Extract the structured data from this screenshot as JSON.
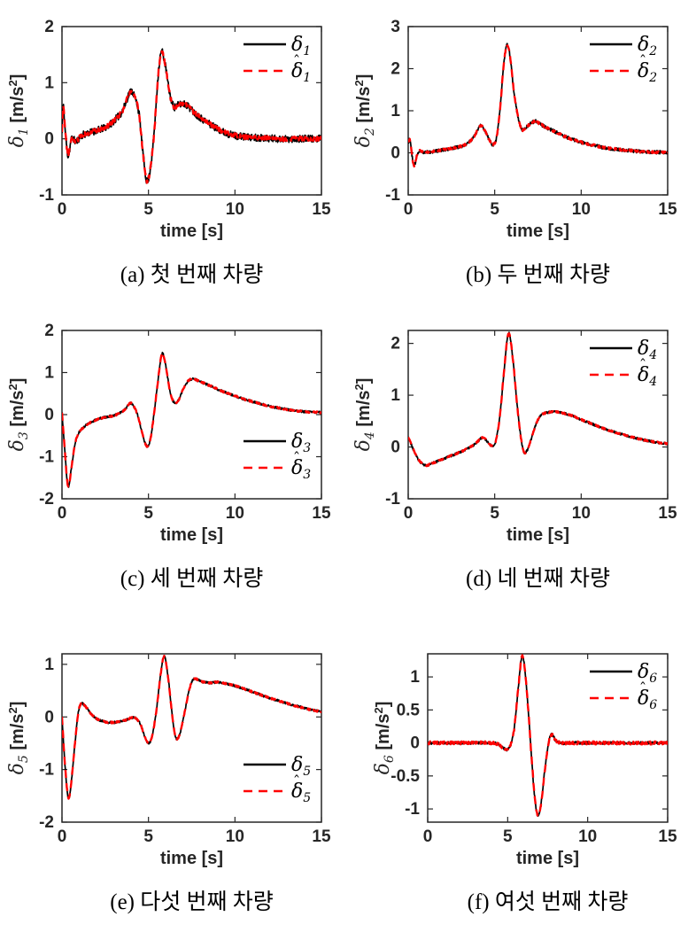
{
  "style": {
    "background": "#ffffff",
    "axis_color": "#262626",
    "measured_color": "#000000",
    "estimate_color": "#ff0000"
  },
  "chart_data": [
    {
      "id": "a",
      "type": "line",
      "caption": "(a) 첫 번째 차량",
      "xlabel": "time [s]",
      "ylabel": {
        "sym": "δ",
        "sub": "1",
        "unit_pre": " [m/s",
        "unit_sup": "2",
        "unit_post": "]"
      },
      "xlim": [
        0,
        15
      ],
      "ylim": [
        -1,
        2
      ],
      "xticks": [
        0,
        5,
        10,
        15
      ],
      "yticks": [
        -1,
        0,
        1,
        2
      ],
      "legend_pos": "top-right",
      "series": [
        {
          "name": "δ1",
          "role": "measured",
          "sym": "δ",
          "sub": "1",
          "hat": false,
          "color": "#000000",
          "style": "solid",
          "width": 1.7,
          "noise": 0.065,
          "seed": 11
        },
        {
          "name": "δ̂1",
          "role": "estimate",
          "sym": "δ",
          "sub": "1",
          "hat": true,
          "color": "#ff0000",
          "style": "dashed",
          "width": 2.4,
          "noise": 0.04,
          "seed": 57
        }
      ],
      "points": [
        [
          0,
          0.1
        ],
        [
          0.05,
          0.55
        ],
        [
          0.2,
          0.1
        ],
        [
          0.35,
          -0.3
        ],
        [
          0.55,
          0.0
        ],
        [
          0.8,
          -0.05
        ],
        [
          1.1,
          0.05
        ],
        [
          1.5,
          0.1
        ],
        [
          2,
          0.15
        ],
        [
          2.5,
          0.2
        ],
        [
          3,
          0.32
        ],
        [
          3.5,
          0.5
        ],
        [
          4,
          0.85
        ],
        [
          4.2,
          0.75
        ],
        [
          4.45,
          0.45
        ],
        [
          4.7,
          -0.3
        ],
        [
          4.9,
          -0.75
        ],
        [
          5.1,
          -0.55
        ],
        [
          5.35,
          0.2
        ],
        [
          5.55,
          1.1
        ],
        [
          5.75,
          1.55
        ],
        [
          5.95,
          1.35
        ],
        [
          6.2,
          0.85
        ],
        [
          6.45,
          0.58
        ],
        [
          6.7,
          0.6
        ],
        [
          7,
          0.63
        ],
        [
          7.3,
          0.58
        ],
        [
          7.6,
          0.48
        ],
        [
          8,
          0.38
        ],
        [
          8.5,
          0.27
        ],
        [
          9,
          0.18
        ],
        [
          9.5,
          0.1
        ],
        [
          10,
          0.06
        ],
        [
          10.7,
          0.03
        ],
        [
          11.5,
          0.02
        ],
        [
          12.5,
          0.0
        ],
        [
          13.5,
          0.0
        ],
        [
          14.2,
          0.0
        ],
        [
          15,
          0.0
        ]
      ]
    },
    {
      "id": "b",
      "type": "line",
      "caption": "(b) 두 번째 차량",
      "xlabel": "time [s]",
      "ylabel": {
        "sym": "δ",
        "sub": "2",
        "unit_pre": " [m/s",
        "unit_sup": "2",
        "unit_post": "]"
      },
      "xlim": [
        0,
        15
      ],
      "ylim": [
        -1,
        3
      ],
      "xticks": [
        0,
        5,
        10,
        15
      ],
      "yticks": [
        -1,
        0,
        1,
        2,
        3
      ],
      "legend_pos": "top-right",
      "series": [
        {
          "name": "δ2",
          "role": "measured",
          "sym": "δ",
          "sub": "2",
          "hat": false,
          "color": "#000000",
          "style": "solid",
          "width": 1.7,
          "noise": 0.04,
          "seed": 12
        },
        {
          "name": "δ̂2",
          "role": "estimate",
          "sym": "δ",
          "sub": "2",
          "hat": true,
          "color": "#ff0000",
          "style": "dashed",
          "width": 2.4,
          "noise": 0.028,
          "seed": 58
        }
      ],
      "points": [
        [
          0,
          0.25
        ],
        [
          0.1,
          0.3
        ],
        [
          0.25,
          -0.15
        ],
        [
          0.35,
          -0.3
        ],
        [
          0.55,
          0.0
        ],
        [
          0.9,
          0.02
        ],
        [
          1.4,
          0.03
        ],
        [
          1.9,
          0.06
        ],
        [
          2.4,
          0.1
        ],
        [
          2.9,
          0.14
        ],
        [
          3.4,
          0.22
        ],
        [
          3.8,
          0.38
        ],
        [
          4.2,
          0.65
        ],
        [
          4.4,
          0.55
        ],
        [
          4.7,
          0.3
        ],
        [
          4.9,
          0.2
        ],
        [
          5.1,
          0.35
        ],
        [
          5.3,
          1.0
        ],
        [
          5.5,
          2.0
        ],
        [
          5.7,
          2.55
        ],
        [
          5.9,
          2.25
        ],
        [
          6.1,
          1.5
        ],
        [
          6.35,
          0.85
        ],
        [
          6.6,
          0.55
        ],
        [
          6.85,
          0.62
        ],
        [
          7.1,
          0.7
        ],
        [
          7.35,
          0.75
        ],
        [
          7.65,
          0.68
        ],
        [
          8,
          0.6
        ],
        [
          8.5,
          0.5
        ],
        [
          9,
          0.4
        ],
        [
          9.5,
          0.32
        ],
        [
          10,
          0.25
        ],
        [
          10.5,
          0.2
        ],
        [
          11,
          0.15
        ],
        [
          11.7,
          0.1
        ],
        [
          12.4,
          0.07
        ],
        [
          13.2,
          0.04
        ],
        [
          14,
          0.02
        ],
        [
          15,
          0.01
        ]
      ]
    },
    {
      "id": "c",
      "type": "line",
      "caption": "(c) 세 번째 차량",
      "xlabel": "time [s]",
      "ylabel": {
        "sym": "δ",
        "sub": "3",
        "unit_pre": " [m/s",
        "unit_sup": "2",
        "unit_post": "]"
      },
      "xlim": [
        0,
        15
      ],
      "ylim": [
        -2,
        2
      ],
      "xticks": [
        0,
        5,
        10,
        15
      ],
      "yticks": [
        -2,
        -1,
        0,
        1,
        2
      ],
      "legend_pos": "lower-right",
      "series": [
        {
          "name": "δ3",
          "role": "measured",
          "sym": "δ",
          "sub": "3",
          "hat": false,
          "color": "#000000",
          "style": "solid",
          "width": 1.7,
          "noise": 0.028,
          "seed": 13
        },
        {
          "name": "δ̂3",
          "role": "estimate",
          "sym": "δ",
          "sub": "3",
          "hat": true,
          "color": "#ff0000",
          "style": "dashed",
          "width": 2.4,
          "noise": 0.02,
          "seed": 59
        }
      ],
      "points": [
        [
          0,
          0.05
        ],
        [
          0.12,
          -0.6
        ],
        [
          0.35,
          -1.7
        ],
        [
          0.55,
          -1.25
        ],
        [
          0.75,
          -0.7
        ],
        [
          0.95,
          -0.45
        ],
        [
          1.2,
          -0.32
        ],
        [
          1.6,
          -0.2
        ],
        [
          2,
          -0.12
        ],
        [
          2.5,
          -0.06
        ],
        [
          3,
          -0.02
        ],
        [
          3.4,
          0.05
        ],
        [
          3.7,
          0.15
        ],
        [
          3.95,
          0.27
        ],
        [
          4.15,
          0.2
        ],
        [
          4.4,
          -0.05
        ],
        [
          4.65,
          -0.45
        ],
        [
          4.9,
          -0.75
        ],
        [
          5.1,
          -0.6
        ],
        [
          5.3,
          -0.05
        ],
        [
          5.55,
          0.8
        ],
        [
          5.78,
          1.45
        ],
        [
          6,
          1.15
        ],
        [
          6.25,
          0.55
        ],
        [
          6.5,
          0.28
        ],
        [
          6.75,
          0.35
        ],
        [
          7,
          0.6
        ],
        [
          7.3,
          0.8
        ],
        [
          7.6,
          0.85
        ],
        [
          7.9,
          0.8
        ],
        [
          8.3,
          0.73
        ],
        [
          8.8,
          0.64
        ],
        [
          9.3,
          0.55
        ],
        [
          9.9,
          0.46
        ],
        [
          10.5,
          0.37
        ],
        [
          11.1,
          0.3
        ],
        [
          11.8,
          0.22
        ],
        [
          12.5,
          0.16
        ],
        [
          13.2,
          0.11
        ],
        [
          14,
          0.07
        ],
        [
          15,
          0.05
        ]
      ]
    },
    {
      "id": "d",
      "type": "line",
      "caption": "(d) 네 번째 차량",
      "xlabel": "time [s]",
      "ylabel": {
        "sym": "δ",
        "sub": "4",
        "unit_pre": " [m/s",
        "unit_sup": "2",
        "unit_post": "]"
      },
      "xlim": [
        0,
        15
      ],
      "ylim": [
        -1,
        2.25
      ],
      "xticks": [
        0,
        5,
        10,
        15
      ],
      "yticks": [
        -1,
        0,
        1,
        2
      ],
      "legend_pos": "top-right",
      "series": [
        {
          "name": "δ4",
          "role": "measured",
          "sym": "δ",
          "sub": "4",
          "hat": false,
          "color": "#000000",
          "style": "solid",
          "width": 1.7,
          "noise": 0.022,
          "seed": 14
        },
        {
          "name": "δ̂4",
          "role": "estimate",
          "sym": "δ",
          "sub": "4",
          "hat": true,
          "color": "#ff0000",
          "style": "dashed",
          "width": 2.4,
          "noise": 0.016,
          "seed": 60
        }
      ],
      "points": [
        [
          0,
          0.2
        ],
        [
          0.3,
          -0.05
        ],
        [
          0.6,
          -0.25
        ],
        [
          1,
          -0.35
        ],
        [
          1.5,
          -0.3
        ],
        [
          2.1,
          -0.22
        ],
        [
          2.7,
          -0.14
        ],
        [
          3.2,
          -0.07
        ],
        [
          3.7,
          0.02
        ],
        [
          4,
          0.1
        ],
        [
          4.3,
          0.18
        ],
        [
          4.6,
          0.1
        ],
        [
          4.85,
          0.02
        ],
        [
          5.05,
          0.1
        ],
        [
          5.3,
          0.6
        ],
        [
          5.55,
          1.5
        ],
        [
          5.8,
          2.2
        ],
        [
          6.05,
          1.7
        ],
        [
          6.3,
          0.8
        ],
        [
          6.55,
          0.1
        ],
        [
          6.7,
          -0.1
        ],
        [
          6.9,
          -0.05
        ],
        [
          7.15,
          0.2
        ],
        [
          7.4,
          0.45
        ],
        [
          7.7,
          0.62
        ],
        [
          8,
          0.66
        ],
        [
          8.5,
          0.68
        ],
        [
          9,
          0.65
        ],
        [
          9.5,
          0.6
        ],
        [
          10,
          0.53
        ],
        [
          10.6,
          0.45
        ],
        [
          11.2,
          0.37
        ],
        [
          11.8,
          0.3
        ],
        [
          12.5,
          0.23
        ],
        [
          13.2,
          0.17
        ],
        [
          14,
          0.11
        ],
        [
          15,
          0.06
        ]
      ]
    },
    {
      "id": "e",
      "type": "line",
      "caption": "(e) 다섯 번째 차량",
      "xlabel": "time [s]",
      "ylabel": {
        "sym": "δ",
        "sub": "5",
        "unit_pre": " [m/s",
        "unit_sup": "2",
        "unit_post": "]"
      },
      "xlim": [
        0,
        15
      ],
      "ylim": [
        -2,
        1.2
      ],
      "xticks": [
        0,
        5,
        10,
        15
      ],
      "yticks": [
        -2,
        -1,
        0,
        1
      ],
      "legend_pos": "lower-right",
      "series": [
        {
          "name": "δ5",
          "role": "measured",
          "sym": "δ",
          "sub": "5",
          "hat": false,
          "color": "#000000",
          "style": "solid",
          "width": 1.7,
          "noise": 0.022,
          "seed": 15
        },
        {
          "name": "δ̂5",
          "role": "estimate",
          "sym": "δ",
          "sub": "5",
          "hat": true,
          "color": "#ff0000",
          "style": "dashed",
          "width": 2.4,
          "noise": 0.016,
          "seed": 61
        }
      ],
      "points": [
        [
          0,
          0.0
        ],
        [
          0.15,
          -0.8
        ],
        [
          0.38,
          -1.55
        ],
        [
          0.55,
          -1.2
        ],
        [
          0.75,
          -0.5
        ],
        [
          0.95,
          0.1
        ],
        [
          1.1,
          0.25
        ],
        [
          1.35,
          0.2
        ],
        [
          1.7,
          0.05
        ],
        [
          2.1,
          -0.05
        ],
        [
          2.6,
          -0.1
        ],
        [
          3.1,
          -0.1
        ],
        [
          3.6,
          -0.07
        ],
        [
          4,
          -0.02
        ],
        [
          4.25,
          -0.02
        ],
        [
          4.55,
          -0.15
        ],
        [
          4.8,
          -0.38
        ],
        [
          5,
          -0.5
        ],
        [
          5.2,
          -0.38
        ],
        [
          5.45,
          0.1
        ],
        [
          5.7,
          0.8
        ],
        [
          5.9,
          1.15
        ],
        [
          6.1,
          0.85
        ],
        [
          6.3,
          0.25
        ],
        [
          6.5,
          -0.28
        ],
        [
          6.65,
          -0.42
        ],
        [
          6.85,
          -0.28
        ],
        [
          7.1,
          0.1
        ],
        [
          7.35,
          0.5
        ],
        [
          7.55,
          0.7
        ],
        [
          7.75,
          0.72
        ],
        [
          8,
          0.68
        ],
        [
          8.5,
          0.65
        ],
        [
          9,
          0.66
        ],
        [
          9.4,
          0.64
        ],
        [
          9.9,
          0.6
        ],
        [
          10.4,
          0.55
        ],
        [
          10.9,
          0.49
        ],
        [
          11.4,
          0.43
        ],
        [
          12,
          0.36
        ],
        [
          12.7,
          0.29
        ],
        [
          13.3,
          0.23
        ],
        [
          14,
          0.17
        ],
        [
          14.6,
          0.12
        ],
        [
          15,
          0.1
        ]
      ]
    },
    {
      "id": "f",
      "type": "line",
      "caption": "(f) 여섯 번째 차량",
      "xlabel": "time [s]",
      "ylabel": {
        "sym": "δ",
        "sub": "6",
        "unit_pre": " [m/s",
        "unit_sup": "2",
        "unit_post": "]"
      },
      "xlim": [
        0,
        15
      ],
      "ylim": [
        -1.2,
        1.35
      ],
      "xticks": [
        0,
        5,
        10,
        15
      ],
      "yticks": [
        -1,
        -0.5,
        0,
        0.5,
        1
      ],
      "legend_pos": "top-right",
      "series": [
        {
          "name": "δ6",
          "role": "measured",
          "sym": "δ",
          "sub": "6",
          "hat": false,
          "color": "#000000",
          "style": "solid",
          "width": 1.7,
          "noise": 0.02,
          "seed": 16
        },
        {
          "name": "δ̂6",
          "role": "estimate",
          "sym": "δ",
          "sub": "6",
          "hat": true,
          "color": "#ff0000",
          "style": "dashed",
          "width": 2.4,
          "noise": 0.024,
          "seed": 62
        }
      ],
      "points": [
        [
          0,
          0
        ],
        [
          0.5,
          0
        ],
        [
          1,
          0
        ],
        [
          1.5,
          0
        ],
        [
          2,
          0
        ],
        [
          2.5,
          0
        ],
        [
          3,
          0
        ],
        [
          3.5,
          0
        ],
        [
          4,
          0
        ],
        [
          4.4,
          -0.02
        ],
        [
          4.7,
          -0.07
        ],
        [
          4.95,
          -0.1
        ],
        [
          5.15,
          -0.05
        ],
        [
          5.4,
          0.2
        ],
        [
          5.65,
          0.8
        ],
        [
          5.9,
          1.32
        ],
        [
          6.1,
          1.05
        ],
        [
          6.3,
          0.45
        ],
        [
          6.5,
          -0.25
        ],
        [
          6.7,
          -0.85
        ],
        [
          6.9,
          -1.1
        ],
        [
          7.1,
          -0.9
        ],
        [
          7.3,
          -0.45
        ],
        [
          7.5,
          -0.08
        ],
        [
          7.65,
          0.1
        ],
        [
          7.8,
          0.12
        ],
        [
          8,
          0.04
        ],
        [
          8.3,
          0
        ],
        [
          8.8,
          0
        ],
        [
          9.5,
          0
        ],
        [
          10.5,
          0
        ],
        [
          11.5,
          0
        ],
        [
          12.5,
          0
        ],
        [
          13.5,
          0
        ],
        [
          14.5,
          0
        ],
        [
          15,
          0
        ]
      ]
    }
  ]
}
